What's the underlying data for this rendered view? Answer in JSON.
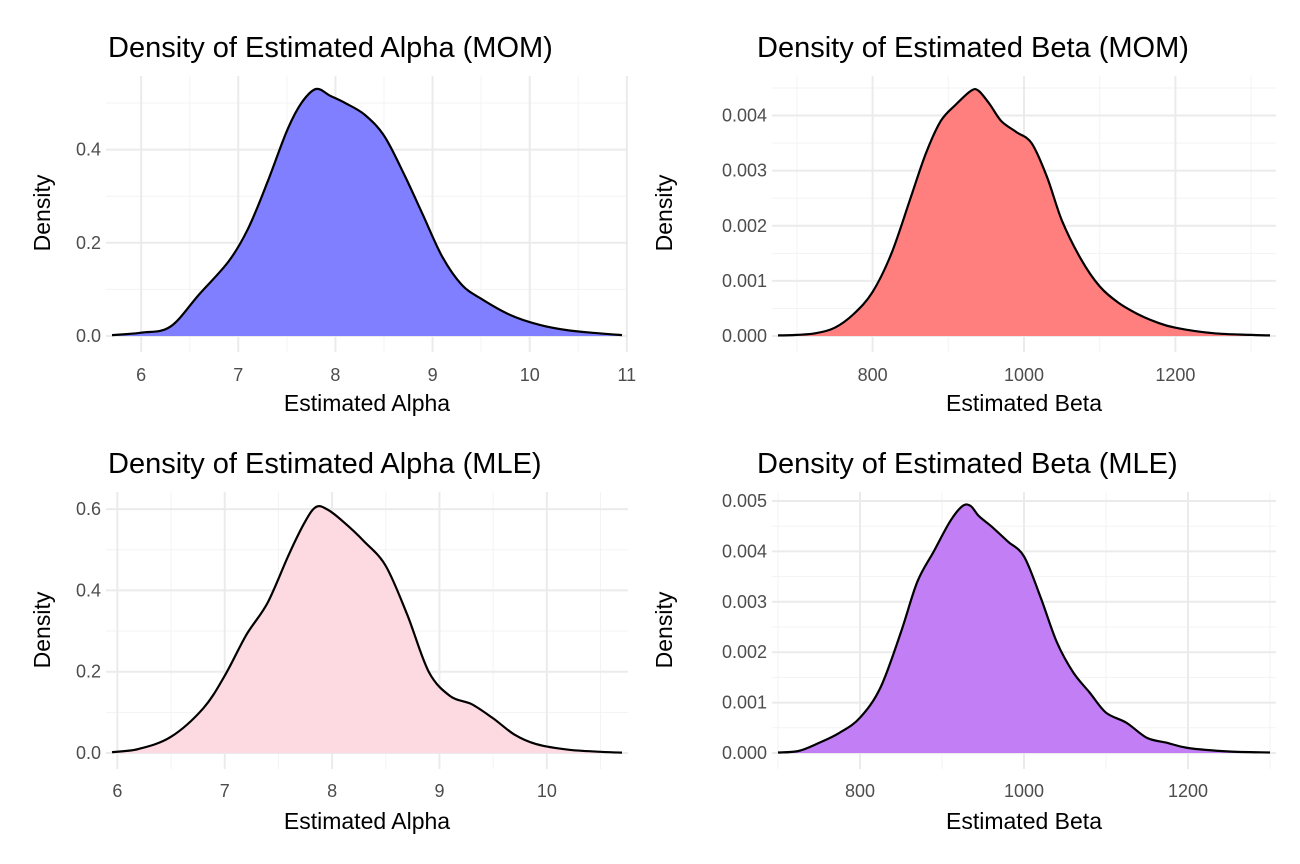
{
  "chart_data": [
    {
      "type": "area",
      "title": "Density of Estimated Alpha (MOM)",
      "xlabel": "Estimated Alpha",
      "ylabel": "Density",
      "xlim": [
        5.7,
        10.95
      ],
      "ylim": [
        0,
        0.53
      ],
      "xticks": [
        6,
        7,
        8,
        9,
        10,
        11
      ],
      "xtick_labels": [
        "6",
        "7",
        "8",
        "9",
        "10",
        "11"
      ],
      "yticks": [
        0,
        0.2,
        0.4
      ],
      "ytick_labels": [
        "0.0",
        "0.2",
        "0.4"
      ],
      "grid": true,
      "series": [
        {
          "fill": "#7f7fff",
          "line": "#000000",
          "x": [
            5.7,
            6.0,
            6.3,
            6.6,
            6.9,
            7.1,
            7.3,
            7.5,
            7.65,
            7.8,
            7.95,
            8.1,
            8.3,
            8.5,
            8.7,
            8.9,
            9.1,
            9.3,
            9.5,
            9.8,
            10.1,
            10.4,
            10.7,
            10.95
          ],
          "y": [
            0.002,
            0.007,
            0.02,
            0.09,
            0.16,
            0.23,
            0.33,
            0.44,
            0.5,
            0.53,
            0.515,
            0.5,
            0.475,
            0.43,
            0.35,
            0.26,
            0.17,
            0.11,
            0.08,
            0.045,
            0.024,
            0.012,
            0.006,
            0.002
          ]
        }
      ]
    },
    {
      "type": "area",
      "title": "Density of Estimated Beta (MOM)",
      "xlabel": "Estimated Beta",
      "ylabel": "Density",
      "xlim": [
        675,
        1325
      ],
      "ylim": [
        0,
        0.0045
      ],
      "xticks": [
        800,
        1000,
        1200
      ],
      "xtick_labels": [
        "800",
        "1000",
        "1200"
      ],
      "yticks": [
        0,
        0.001,
        0.002,
        0.003,
        0.004
      ],
      "ytick_labels": [
        "0.000",
        "0.001",
        "0.002",
        "0.003",
        "0.004"
      ],
      "grid": true,
      "series": [
        {
          "fill": "#ff7f7f",
          "line": "#000000",
          "x": [
            675,
            700,
            725,
            750,
            775,
            800,
            825,
            850,
            870,
            890,
            910,
            930,
            940,
            955,
            970,
            990,
            1010,
            1030,
            1050,
            1075,
            1100,
            1125,
            1150,
            1175,
            1200,
            1250,
            1300,
            1325
          ],
          "y": [
            1e-05,
            2e-05,
            5e-05,
            0.00015,
            0.0004,
            0.0008,
            0.0015,
            0.0025,
            0.0033,
            0.0039,
            0.0042,
            0.00445,
            0.00445,
            0.0042,
            0.0039,
            0.0037,
            0.0035,
            0.0029,
            0.0021,
            0.0014,
            0.0009,
            0.0006,
            0.0004,
            0.00025,
            0.00015,
            5e-05,
            2e-05,
            1e-05
          ]
        }
      ]
    },
    {
      "type": "area",
      "title": "Density of Estimated Alpha (MLE)",
      "xlabel": "Estimated Alpha",
      "ylabel": "Density",
      "xlim": [
        5.95,
        10.7
      ],
      "ylim": [
        0,
        0.61
      ],
      "xticks": [
        6,
        7,
        8,
        9,
        10
      ],
      "xtick_labels": [
        "6",
        "7",
        "8",
        "9",
        "10"
      ],
      "yticks": [
        0,
        0.2,
        0.4,
        0.6
      ],
      "ytick_labels": [
        "0.0",
        "0.2",
        "0.4",
        "0.6"
      ],
      "grid": true,
      "series": [
        {
          "fill": "#fdd9e1",
          "line": "#000000",
          "x": [
            5.95,
            6.2,
            6.5,
            6.8,
            7.0,
            7.2,
            7.4,
            7.6,
            7.75,
            7.85,
            7.95,
            8.1,
            8.3,
            8.5,
            8.7,
            8.9,
            9.1,
            9.3,
            9.5,
            9.7,
            9.9,
            10.2,
            10.5,
            10.7
          ],
          "y": [
            0.002,
            0.01,
            0.04,
            0.11,
            0.19,
            0.29,
            0.37,
            0.49,
            0.57,
            0.605,
            0.6,
            0.57,
            0.52,
            0.46,
            0.34,
            0.2,
            0.14,
            0.12,
            0.085,
            0.045,
            0.022,
            0.008,
            0.003,
            0.001
          ]
        }
      ]
    },
    {
      "type": "area",
      "title": "Density of Estimated Beta (MLE)",
      "xlabel": "Estimated Beta",
      "ylabel": "Density",
      "xlim": [
        700,
        1300
      ],
      "ylim": [
        0,
        0.005
      ],
      "xticks": [
        800,
        1000,
        1200
      ],
      "xtick_labels": [
        "800",
        "1000",
        "1200"
      ],
      "yticks": [
        0,
        0.001,
        0.002,
        0.003,
        0.004,
        0.005
      ],
      "ytick_labels": [
        "0.000",
        "0.001",
        "0.002",
        "0.003",
        "0.004",
        "0.005"
      ],
      "grid": true,
      "series": [
        {
          "fill": "#c27ff5",
          "line": "#000000",
          "x": [
            700,
            725,
            750,
            775,
            800,
            825,
            850,
            870,
            890,
            910,
            925,
            935,
            945,
            960,
            980,
            1000,
            1020,
            1040,
            1060,
            1080,
            1100,
            1125,
            1150,
            1175,
            1200,
            1250,
            1300
          ],
          "y": [
            1e-05,
            4e-05,
            0.0002,
            0.0004,
            0.0007,
            0.0013,
            0.0024,
            0.0034,
            0.004,
            0.0046,
            0.0049,
            0.0049,
            0.0047,
            0.0045,
            0.0042,
            0.0039,
            0.0031,
            0.0022,
            0.0016,
            0.0012,
            0.0008,
            0.0006,
            0.0003,
            0.0002,
            0.0001,
            3e-05,
            1e-05
          ]
        }
      ]
    }
  ]
}
